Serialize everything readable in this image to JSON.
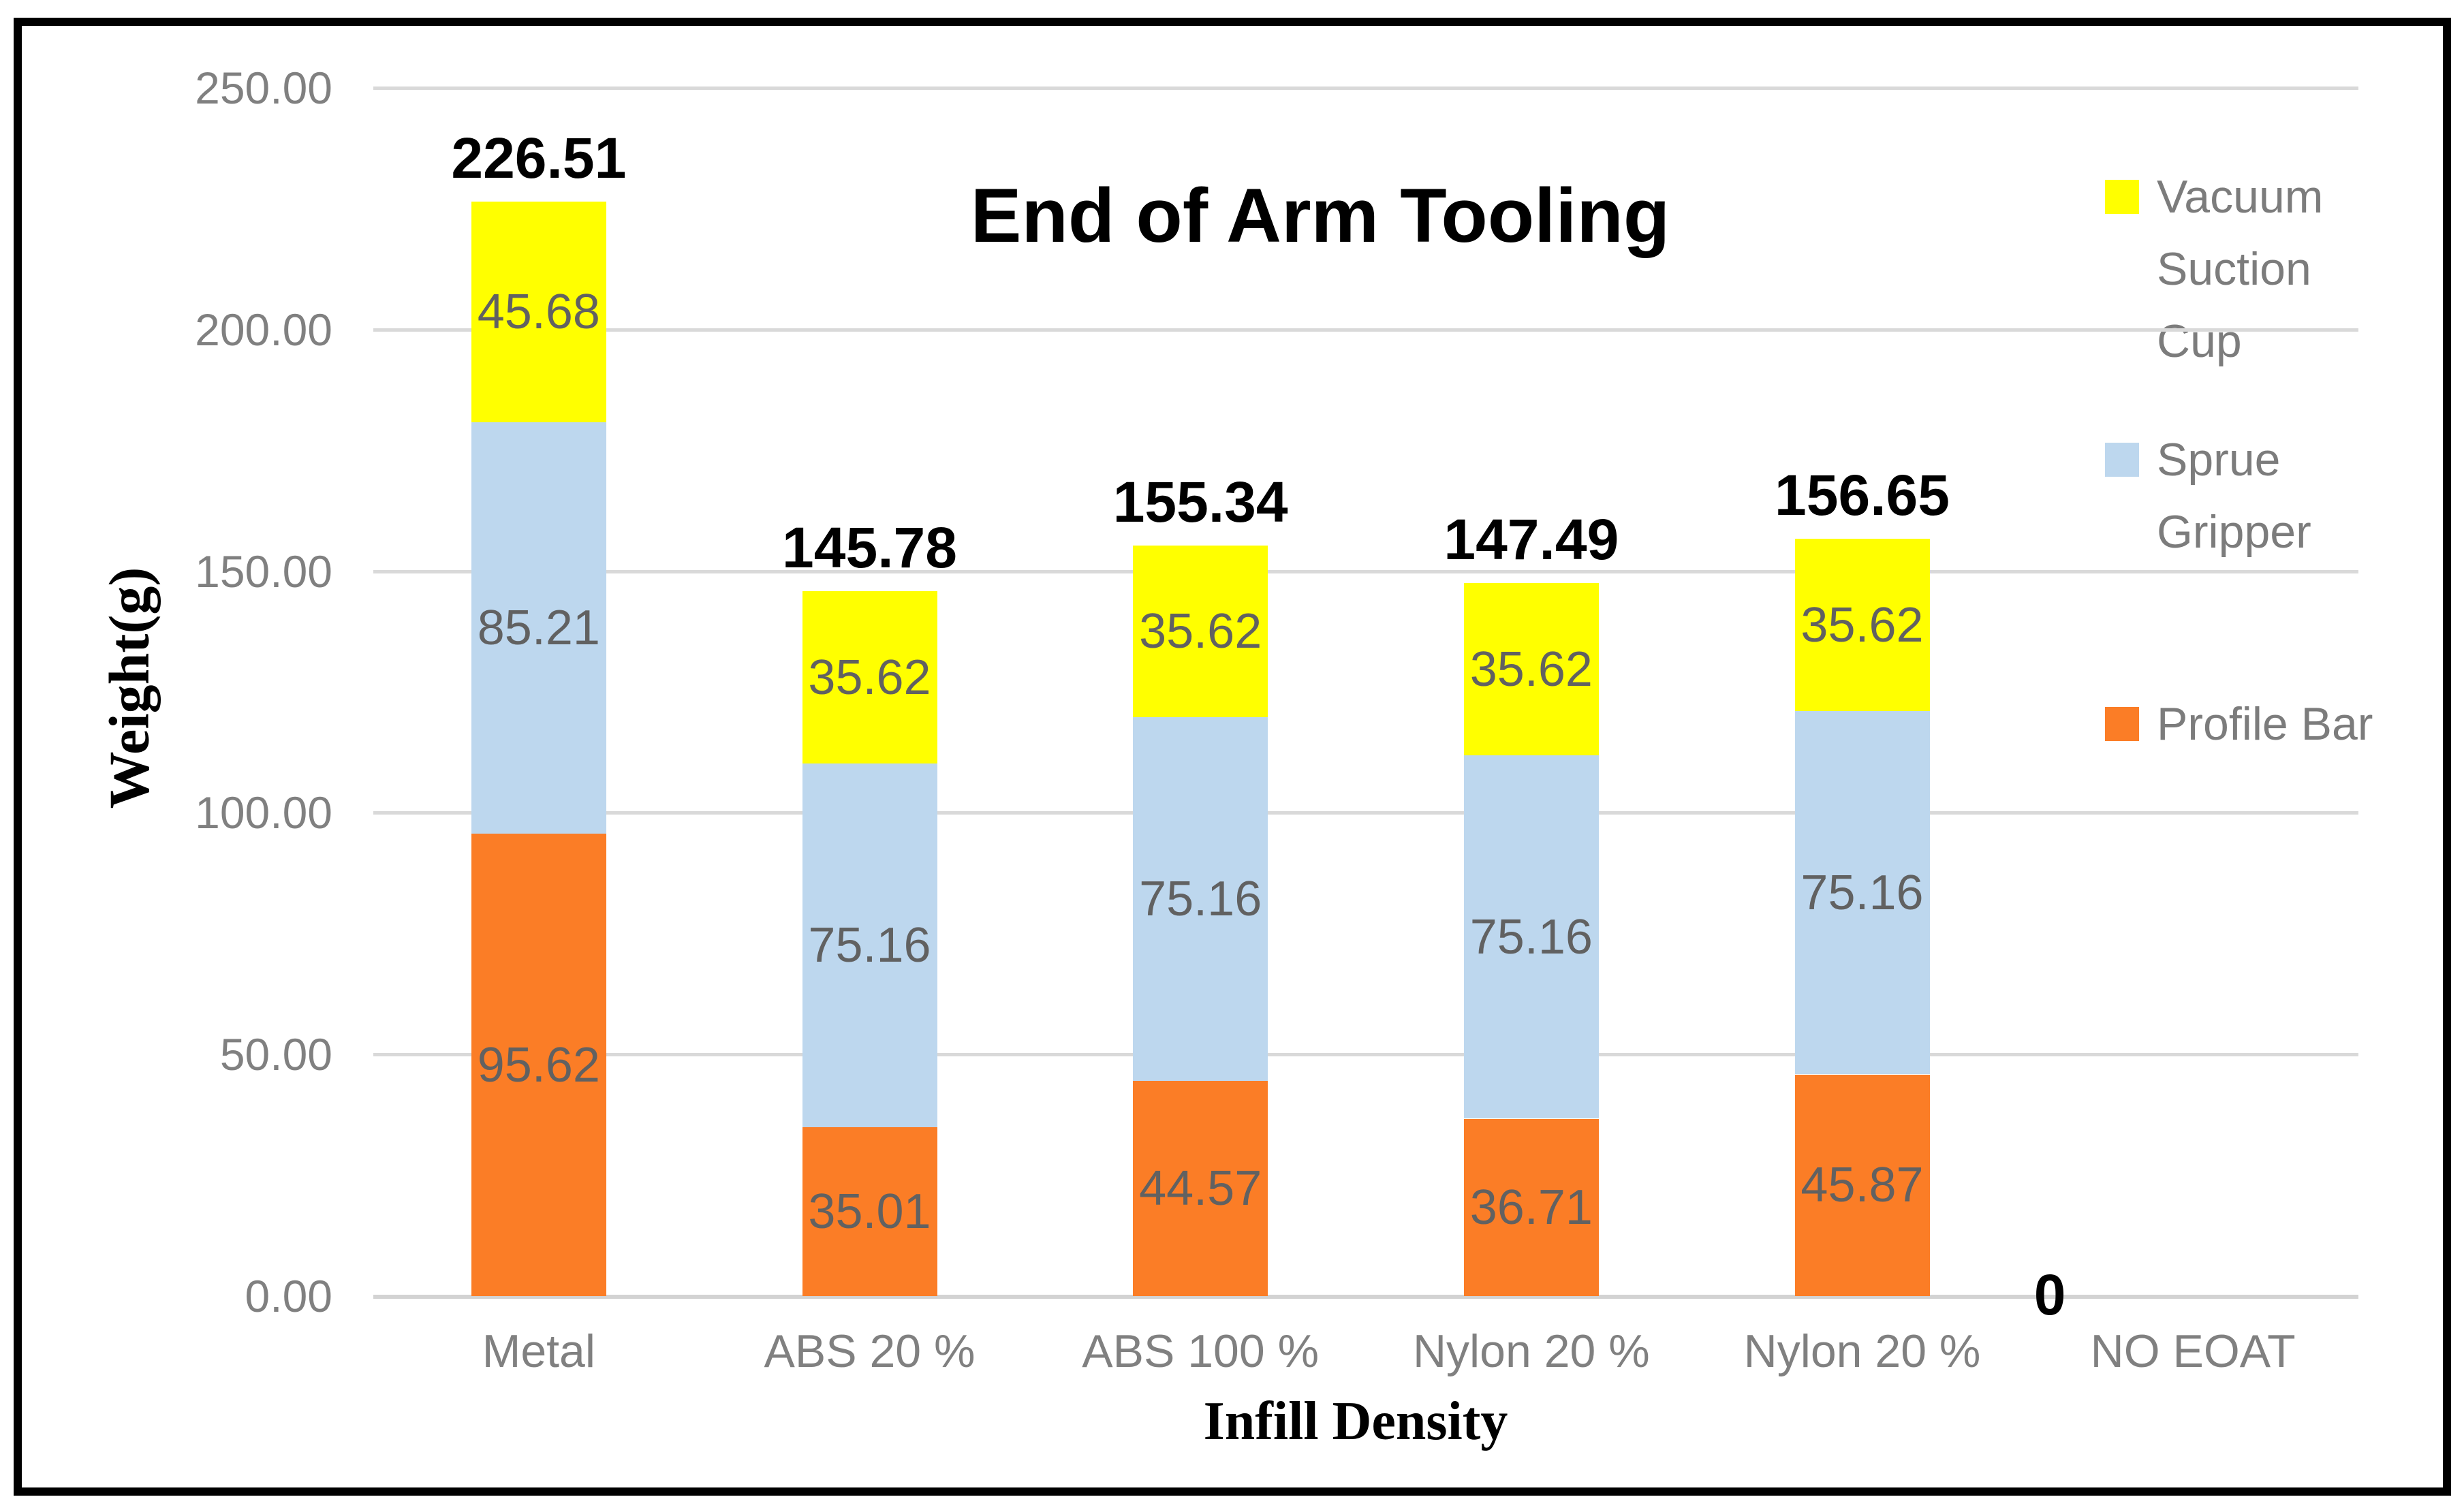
{
  "chart_data": {
    "type": "bar",
    "stacked": true,
    "title": "End of Arm Tooling",
    "xlabel": "Infill Density",
    "ylabel": "Weight(g)",
    "ylim": [
      0,
      250
    ],
    "ytick_step": 50,
    "yticks": [
      "0.00",
      "50.00",
      "100.00",
      "150.00",
      "200.00",
      "250.00"
    ],
    "grid": true,
    "legend_position": "right-overlapping",
    "categories": [
      "Metal",
      "ABS 20 %",
      "ABS 100 %",
      "Nylon 20 %",
      "Nylon 20 %",
      "NO EOAT"
    ],
    "series": [
      {
        "name": "Profile Bar",
        "color": "#fb7d26",
        "values": [
          95.62,
          35.01,
          44.57,
          36.71,
          45.87,
          0
        ]
      },
      {
        "name": "Sprue Gripper",
        "color": "#bdd7ee",
        "values": [
          85.21,
          75.16,
          75.16,
          75.16,
          75.16,
          0
        ]
      },
      {
        "name": "Vacuum Suction Cup",
        "color": "#ffff00",
        "values": [
          45.68,
          35.62,
          35.62,
          35.62,
          35.62,
          0
        ]
      }
    ],
    "totals": [
      "226.51",
      "145.78",
      "155.34",
      "147.49",
      "156.65",
      "0"
    ],
    "legend": [
      {
        "lines": "Vacuum\nSuction\nCup",
        "color": "#ffff00",
        "y": 236
      },
      {
        "lines": "Sprue\nGripper",
        "color": "#bdd7ee",
        "y": 622
      },
      {
        "lines": "Profile Bar",
        "color": "#fb7d26",
        "y": 1010
      }
    ]
  },
  "style_colors": {
    "gridline": "#d9d9d9",
    "axis_text": "#808080",
    "segment_label": "#616161",
    "frame": "#000000",
    "background": "#ffffff"
  }
}
